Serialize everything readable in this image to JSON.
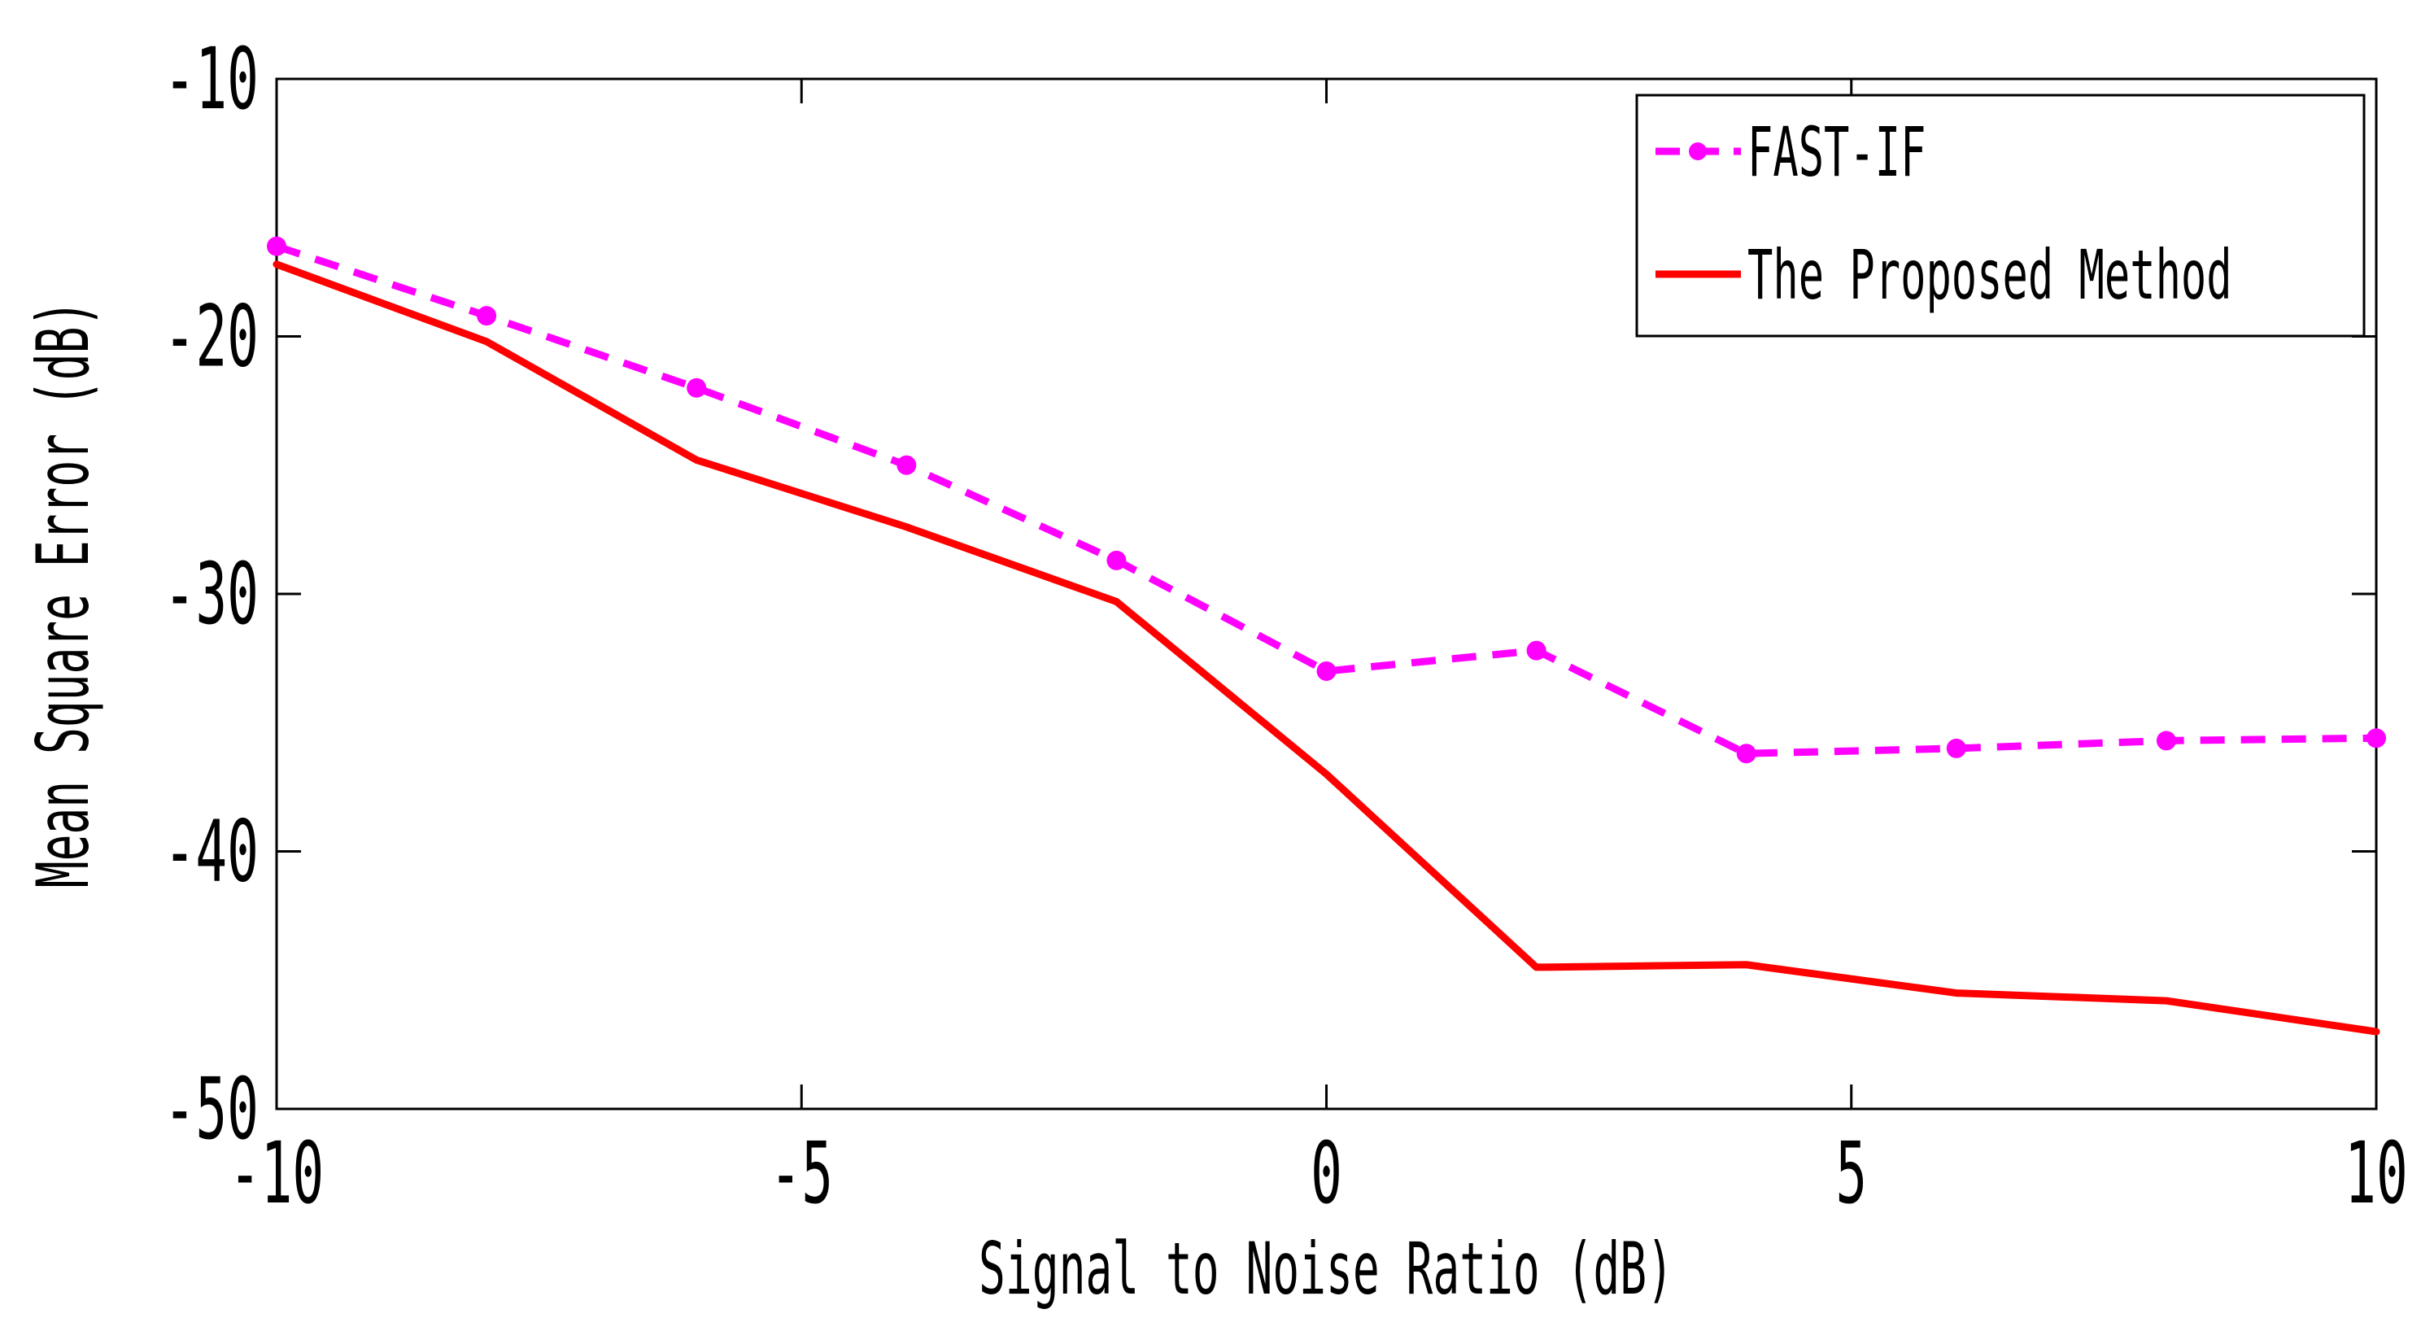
{
  "chart_data": {
    "type": "line",
    "title": "",
    "xlabel": "Signal to Noise Ratio (dB)",
    "ylabel": "Mean Square Error (dB)",
    "xlim": [
      -10,
      10
    ],
    "ylim": [
      -50,
      -10
    ],
    "xticks": [
      -10,
      -5,
      0,
      5,
      10
    ],
    "yticks": [
      -50,
      -40,
      -30,
      -20,
      -10
    ],
    "x_tick_labels": [
      "-10",
      "-5",
      "0",
      "5",
      "10"
    ],
    "y_tick_labels": [
      "-50",
      "-40",
      "-30",
      "-20",
      "-10"
    ],
    "legend_position": "top-right",
    "series": [
      {
        "name": "FAST-IF",
        "color": "#ff00ff",
        "line_style": "dashed",
        "marker": "dot",
        "x": [
          -10,
          -8,
          -6,
          -4,
          -2,
          0,
          2,
          4,
          6,
          8,
          10
        ],
        "values": [
          -16.5,
          -19.2,
          -22.0,
          -25.0,
          -28.7,
          -33.0,
          -32.2,
          -36.2,
          -36.0,
          -35.7,
          -35.6
        ]
      },
      {
        "name": "The Proposed Method",
        "color": "#ff0000",
        "line_style": "solid",
        "marker": "none",
        "x": [
          -10,
          -8,
          -6,
          -4,
          -2,
          0,
          2,
          4,
          6,
          8,
          10
        ],
        "values": [
          -17.2,
          -20.2,
          -24.8,
          -27.4,
          -30.3,
          -37.0,
          -44.5,
          -44.4,
          -45.5,
          -45.8,
          -47.0
        ]
      }
    ]
  }
}
